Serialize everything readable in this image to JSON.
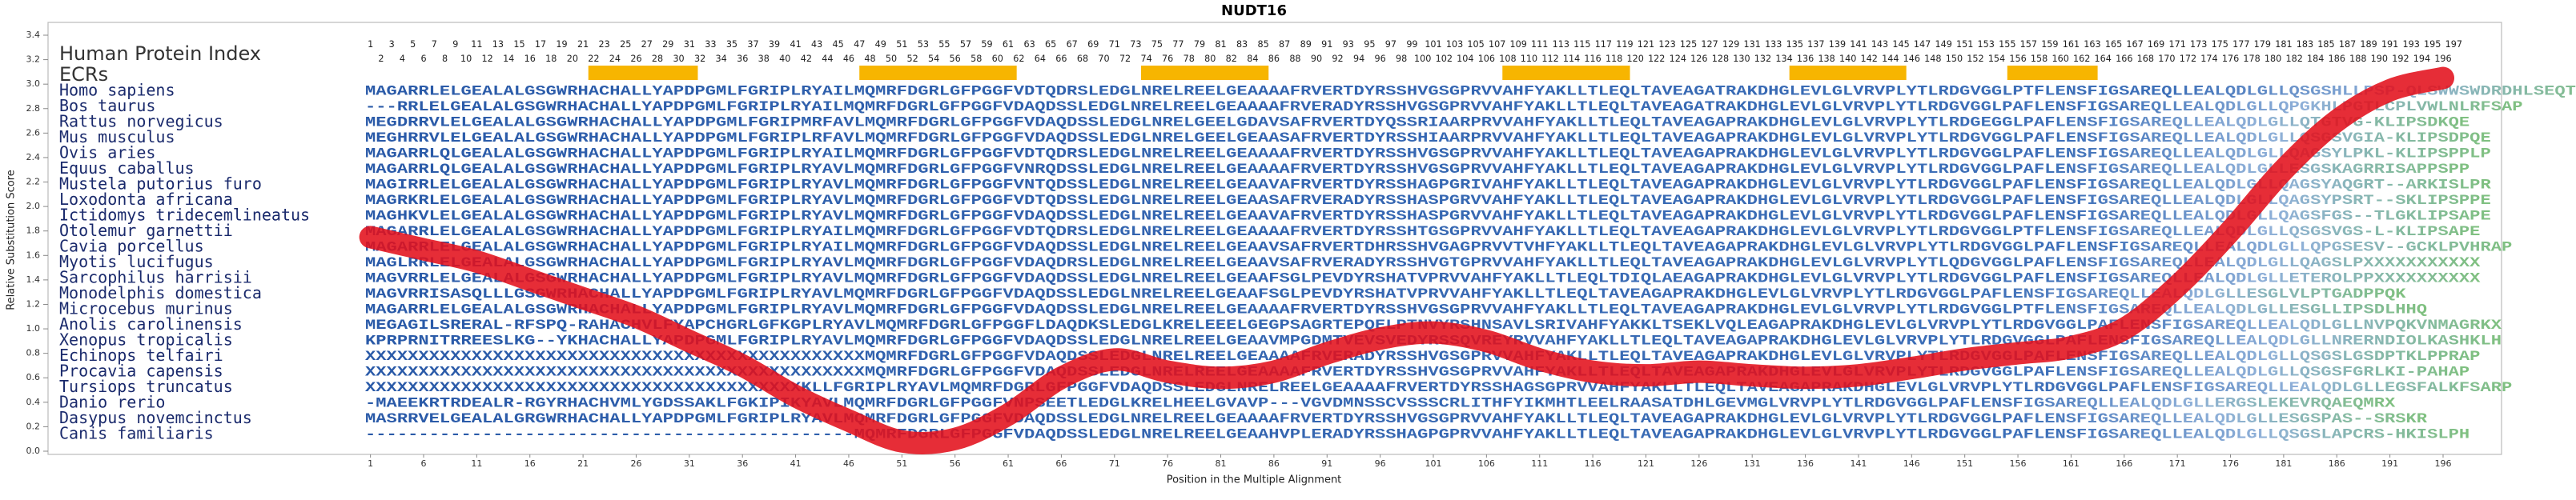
{
  "chart_data": {
    "type": "line",
    "title": "NUDT16",
    "x_label": "Position in the Multiple Alignment",
    "y_label": "Relative Substitution Score",
    "xlim": [
      0.5,
      201.5
    ],
    "ylim": [
      0,
      3.4
    ],
    "xticks": [
      1,
      6,
      11,
      16,
      21,
      26,
      31,
      36,
      41,
      46,
      51,
      56,
      61,
      66,
      71,
      76,
      81,
      86,
      91,
      96,
      101,
      106,
      111,
      116,
      121,
      126,
      131,
      136,
      141,
      146,
      151,
      156,
      161,
      166,
      171,
      176,
      181,
      186,
      191,
      196
    ],
    "yticks": [
      {
        "value": 0,
        "label": "0.0"
      },
      {
        "value": 0.2,
        "label": "0.2"
      },
      {
        "value": 0.4,
        "label": "0.4"
      },
      {
        "value": 0.6,
        "label": "0.6"
      },
      {
        "value": 0.8,
        "label": "0.8"
      },
      {
        "value": 1,
        "label": "1.0"
      },
      {
        "value": 1.2,
        "label": "1.2"
      },
      {
        "value": 1.4,
        "label": "1.4"
      },
      {
        "value": 1.6,
        "label": "1.6"
      },
      {
        "value": 1.8,
        "label": "1.8"
      },
      {
        "value": 2,
        "label": "2.0"
      },
      {
        "value": 2.2,
        "label": "2.2"
      },
      {
        "value": 2.4,
        "label": "2.4"
      },
      {
        "value": 2.6,
        "label": "2.6"
      },
      {
        "value": 2.8,
        "label": "2.8"
      },
      {
        "value": 3,
        "label": "3.0"
      },
      {
        "value": 3.2,
        "label": "3.2"
      },
      {
        "value": 3.4,
        "label": "3.4"
      }
    ],
    "color": "#e3101b",
    "x": [
      1,
      6,
      11,
      16,
      21,
      26,
      31,
      36,
      41,
      46,
      51,
      56,
      61,
      66,
      71,
      76,
      81,
      86,
      91,
      96,
      101,
      106,
      111,
      116,
      121,
      126,
      131,
      136,
      141,
      146,
      151,
      156,
      161,
      166,
      171,
      176,
      181,
      186,
      191,
      196
    ],
    "values": [
      1.75,
      1.65,
      1.55,
      1.4,
      1.25,
      1.1,
      0.9,
      0.7,
      0.45,
      0.25,
      0.08,
      0.1,
      0.3,
      0.6,
      0.75,
      0.65,
      0.6,
      0.65,
      0.8,
      0.92,
      0.97,
      0.9,
      0.75,
      0.65,
      0.62,
      0.65,
      0.62,
      0.6,
      0.62,
      0.68,
      0.75,
      0.8,
      0.85,
      1.0,
      1.35,
      1.8,
      2.3,
      2.7,
      2.95,
      3.05
    ],
    "alignment": {
      "index_label": "Human Protein Index",
      "ecr_label": "ECRs",
      "ecr_color": "#f7b500",
      "index_odd": [
        1,
        3,
        5,
        7,
        9,
        11,
        13,
        15,
        17,
        19,
        21,
        23,
        25,
        27,
        29,
        31,
        33,
        35,
        37,
        39,
        41,
        43,
        45,
        47,
        49,
        51,
        53,
        55,
        57,
        59,
        61,
        63,
        65,
        67,
        69,
        71,
        73,
        75,
        77,
        79,
        81,
        83,
        85,
        87,
        89,
        91,
        93,
        95,
        97,
        99,
        101,
        103,
        105,
        107,
        109,
        111,
        113,
        115,
        117,
        119,
        121,
        123,
        125,
        127,
        129,
        131,
        133,
        135,
        137,
        139,
        141,
        143,
        145,
        147,
        149,
        151,
        153,
        155,
        157,
        159,
        161,
        163,
        165,
        167,
        169,
        171,
        173,
        175,
        177,
        179,
        181,
        183,
        185,
        187,
        189,
        191,
        193,
        195,
        197
      ],
      "index_even": [
        2,
        4,
        6,
        8,
        10,
        12,
        14,
        16,
        18,
        20,
        22,
        24,
        26,
        28,
        30,
        32,
        34,
        36,
        38,
        40,
        42,
        44,
        46,
        48,
        50,
        52,
        54,
        56,
        58,
        60,
        62,
        64,
        66,
        68,
        70,
        72,
        74,
        76,
        78,
        80,
        82,
        84,
        86,
        88,
        90,
        92,
        94,
        96,
        98,
        100,
        102,
        104,
        106,
        108,
        110,
        112,
        114,
        116,
        118,
        120,
        122,
        124,
        126,
        128,
        130,
        132,
        134,
        136,
        138,
        140,
        142,
        144,
        146,
        148,
        150,
        152,
        154,
        156,
        158,
        160,
        162,
        164,
        166,
        168,
        170,
        172,
        174,
        176,
        178,
        180,
        182,
        184,
        186,
        188,
        190,
        192,
        194,
        196
      ],
      "ecrs": [
        [
          21.5,
          31.8
        ],
        [
          47,
          61.8
        ],
        [
          73.5,
          85.5
        ],
        [
          107.5,
          119.5
        ],
        [
          134.5,
          145.5
        ],
        [
          155,
          163.5
        ]
      ],
      "species": [
        "Homo sapiens",
        "Bos taurus",
        "Rattus norvegicus",
        "Mus musculus",
        "Ovis aries",
        "Equus caballus",
        "Mustela putorius furo",
        "Loxodonta africana",
        "Ictidomys tridecemlineatus",
        "Otolemur garnettii",
        "Cavia porcellus",
        "Myotis lucifugus",
        "Sarcophilus harrisii",
        "Monodelphis domestica",
        "Microcebus murinus",
        "Anolis carolinensis",
        "Xenopus tropicalis",
        "Echinops telfairi",
        "Procavia capensis",
        "Tursiops truncatus",
        "Danio rerio",
        "Dasypus novemcinctus",
        "Canis familiaris"
      ],
      "sequences": [
        "MAGARRLELGEALALGSGWRHACHALLYAPDPGMLFGRIPLRYAILMQMRFDGRLGFPGGFVDTQDRSLEDGLNRELREELGEAAAAFRVERTDYRSSHVGSGPRVVAHFYAKLLTLEQLTAVEAGATRAKDHGLEVLGLVRVPLYTLRDGVGGLPTFLENSFIGSAREQLLEALQDLGLLQSGSHLLPSP-QLSWWSWDRDHLSEQTAAPR",
        "---RRLELGEALALGSGWRHACHALLYAPDPGMLFGRIPLRYAILMQMRFDGRLGFPGGFVDAQDSSLEDGLNRELREELGEAAAAFRVERADYRSSHVGSGPRVVAHFYAKLLTLEQLTAVEAGATRAKDHGLEVLGLVRVPLYTLRDGVGGLPAFLENSFIGSAREQLLEALQDLGLLQPGKHLPGTLCPLVWLNLRFSAP",
        "MEGDRRVLELGEALALGSGWRHACHALLYAPDPGMLFGRIPMRFAVLMQMRFDGRLGFPGGFVDAQDSSLEDGLNRELGEELGDAVSAFRVERTDYQSSRIAARPRVVAHFYAKLLTLEQLTAVEAGAPRAKDHGLEVLGLVRVPLYTLRDGEGGLPAFLENSFIGSAREQLLEALQDLGLLQTGTVG-KLIPSDKQE",
        "MEGHRRVLELGEALALGSGWRHACHALLYAPDPGMLFGRIPLRFAVLMQMRFDGRLGFPGGFVDAQDSSLEDGLNRELGEELGEAASAFRVERTDYRSSHIAARPRVVAHFYAKLLTLEQLTAVEAGAPRAKDHGLEVLGLVRVPLYTLRDGVGGLPAFLENSFIGSAREQLLEALQDLGLLQSGSVGIA-KLIPSDPQE",
        "MAGARRLQLGEALALGSGWRHACHALLYAPDPGMLFGRIPLRYAILMQMRFDGRLGFPGGFVDTQDRSLEDGLNRELREELGEAAAAFRVERTDYRSSHVGSGPRVVAHFYAKLLTLEQLTAVEAGAPRAKDHGLEVLGLVRVPLYTLRDGVGGLPAFLENSFIGSAREQLLEALQDLGLLQAGSYLPKL-KLIPSPPLP",
        "MAGARRLQLGEALALGSGWRHACHALLYAPDPGMLFGRIPLRYAVLMQMRFDGRLGFPGGFVNRQDSSLEDGLNRELREELGEAAAAFRVERTDYRSSHVGSGPRVVAHFYAKLLTLEQLTAVEAGAPRAKDHGLEVLGLVRVPLYTLRDGVGGLPAFLENSFIGSAREQLLEALQDLGLLESGSKAGRRISAPPSPP",
        "MAGIRRLELGEALALGSGWRHACHALLYAPDPGMLFGRIPLRYAVLMQMRFDGRLGFPGGFVNTQDSSLEDGLNRELREELGEAAVAFRVERTDYRSSHAGPGRIVAHFYAKLLTLEQLTAVEAGAPRAKDHGLEVLGLVRVPLYTLRDGVGGLPAFLENSFIGSAREQLLEALQDLGLLQAGSYAQGRT--ARKISLPR",
        "MAGRKRLELGEALALGSGWRHACHALLYAPDPGMLFGRIPLRYAVLMQMRFDGRLGFPGGFVDTQDSSLEDGLNRELREELGEAASAFRVERADYRSSHASPGRVVAHFYAKLLTLEQLTAVEAGAPRAKDHGLEVLGLVRVPLYTLRDGVGGLPAFLENSFIGSAREQLLEALQDLGLLQAGSYPSRT--SKLIPSPPE",
        "MAGHKVLELGEALALGSGWRHACHALLYAPDPGMLFGRIPLRYAVLMQMRFDGRLGFPGGFVDAQDSSLEDGLNRELREELGEAAVAFRVERTDYRSSHASPGRVVAHFYAKLLTLEQLTAVEAGAPRAKDHGLEVLGLVRVPLYTLRDGVGGLPAFLENSFIGSAREQLLEALQDLGLLQAGSFGS--TLGKLIPSAPE",
        "MAGARRLELGEALALGSGWRHACHALLYAPDPGMLFGRIPLRYAILMQMRFDGRLGFPGGFVDTQDRSLEDGLNRELREELGEAAAAFRVERTDYRSSHTGSGPRVVAHFYAKLLTLEQLTAVEAGAPRAKDHGLEVLGLVRVPLYTLRDGVGGLPTFLENSFIGSAREQLLEALQDLGLLQSGSVGS-L-KLIPSAPE",
        "MAGARRLELGEALALGSGWRHACHALLYAPDPGMLFGRIPLRYAILMQMRFDGRLGFPGGFVDAQDSSLEDGLNRELREELGEAAVSAFRVERTDHRSSHVGAGPRVVTVHFYAKLLTLEQLTAVEAGAPRAKDHGLEVLGLVRVPLYTLRDGVGGLPAFLENSFIGSAREQLLEALQDLGLLQPGSESV--GCKLPVHRAP",
        "MAGLRRLELGEALALGSGWRHACHALLYAPDPGMLFGRIPLRYAVLMQMRFDGRLGFPGGFVDAQDRSLEDGLNRELREELGEAAVSAFRVERADYRSSHVGTGPRVVAHFYAKLLTLEQLTAVEAGAPRAKDHGLEVLGLVRVPLYTLQDGVGGLPAFLENSFIGSAREQLLEALQDLGLLQAGSLPXXXXXXXXXXX",
        "MAGVRRLELGEALALGSGWRHACHALLYAPDPGMLFGRIPLRYAVLMQMRFDGRLGFPGGFVDAQDSSLEDGLNRELREELGEAAFSGLPEVDYRSHATVPRVVAHFYAKLLTLEQLTDIQLAEAGAPRAKDHGLEVLGLVRVPLYTLRDGVGGLPAFLENSFIGSAREQLLEALQDLGLLETEROLPPXXXXXXXXXX",
        "MAGVRRISASQLLLGSGWRHACHALLYAPDPGMLFGRIPLRYAVLMQMRFDGRLGFPGGFVDAQDSSLEDGLNRELREELGEAAFSGLPEVDYRSHATVPRVVAHFYAKLLTLEQLTAVEAGAPRAKDHGLEVLGLVRVPLYTLRDGVGGLPAFLENSFIGSAREQLLEALQDLGLLESGLVLPTGADPPQK",
        "MAGARRLELGEALALGSGWRHACHALLYAPDPGMLFGRIPLRYAVLMQMRFDGRLGFPGGFVDAQDSSLEDGLNRELREELGEAAAAFRVERTDYRSSHVGSGPRVVAHFYAKLLTLEQLTAVEAGAPRAKDHGLEVLGLVRVPLYTLRDGVGGLPTFLENSFIGSAREQLLEALQDLGLLESGLLIPSDLHHQ",
        "MEGAGILSRERAL-RFSPQ-RAHACHVLFYAPCHGRLGFKGPLRYAVLMQMRFDGRLGFPGGFLDAQDKSLEDGLKRELEEELGEGPSAGRTEPQELPTNVYRSHNSAVLSRIVAHFYAKKLTSEKLVQLEAGAPRAKDHGLEVLGLVRVPLYTLRDGVGGLPAFLENSFIGSAREQLLEALQDLGLLNVPQKVNMAGRKX",
        "KPRPRNITRREESLKG--YKHACHALLYAPDPGMLFGRIPLRYAVLMQMRFDGRLGFPGGFVDAQDSSLEDGLNRELREELGEAAVMPGDMTVEVSVEDYRSSQVREYRVVAHFYAKLLTLEQLTAVEAGAPRAKDHGLEVLGLVRVPLYTLRDGVGGLPAFLENSFIGSAREQLLEALQDLGLLNRERNDIOLKASHKLH",
        "XXXXXXXXXXXXXXXXXXXXXXXXXXXXXXXXXXXXXXXXXXXXXXXMQMRFDGRLGFPGGFVDAQDSSLEDGLNRELREELGEAAAAFRVERADYRSSHVGSGPRVVAHFYAKLLTLEQLTAVEAGAPRAKDHGLEVLGLVRVPLYTLRDGVGGLPAFLENSFIGSAREQLLEALQDLGLLQSGSLGSDPTKLPPRAP",
        "XXXXXXXXXXXXXXXXXXXXXXXXXXXXXXXXXXXXXXXXXXXXXXXMQMRFDGRLGFPGGFVDAQDSSLEDGLNRELREELGEAAAAFRVERTDYRSSHVGSGPRVVAHFYAKLLTLEQLTAVEAGAPRAKDHGLEVLGLVRVPLYTLRDGVGGLPAFLENSFIGSAREQLLEALQDLGLLQSGSFGRLKI-PAHAP",
        "XXXXXXXXXXXXXXXXXXXXXXXXXXXXXXXXXXXXXXXXXKLLFGRIPLRYAVLMQMRFDGRLGFPGGFVDAQDSSLEDGLNRELREELGEAAAAFRVERTDYRSSHAGSGPRVVAHFYAKLLTLEQLTAVEAGAPRAKDHGLEVLGLVRVPLYTLRDGVGGLPAFLENSFIGSAREQLLEALQDLGLLEGSFALKFSARP",
        "-MAEEKRTRDEALR-RGYRHACHVMLYGDSSAKLFGKIPIKYAVLMQMRFDGRLGFPGGFVNPSEETLEDGLKRELHEELGVAVP---VGVDMNSSCVSSSCRLITHFYIKMHTLEELRAASATDHLGEVMGLVRVPLYTLRDGVGGLPAFLENSFIGSAREQLLEALQDLGLLERGSLEKEVRQAEQMRX",
        "MASRRVELGEALALGRGWRHACHALLYAPDPGMLFGRIPLRYAVLMQMRFDGRLGFPGGFVDAQDSSLEDGLNRELREELGEAAAAFRVERTDYRSSHVGSGPRVVAHFYAKLLTLEQLTAVEAGAPRAKDHGLEVLGLVRVPLYTLRDGVGGLPAFLENSFIGSAREQLLEALQDLGLLESGSPAS--SRSKR",
        "----------------------------------------------MQMRFDGRLGFPGGFVDAQDSSLEDGLNRELREELGEAAHVPLERADYRSSHAGPGPRVVAHFYAKLLTLEQLTAVEAGAPRAKDHGLEVLGLVRVPLYTLRDGVGGLPAFLENSFIGSAREQLLEALQDLGLLQSGSLAPCRS-HKISLPH"
      ]
    }
  }
}
